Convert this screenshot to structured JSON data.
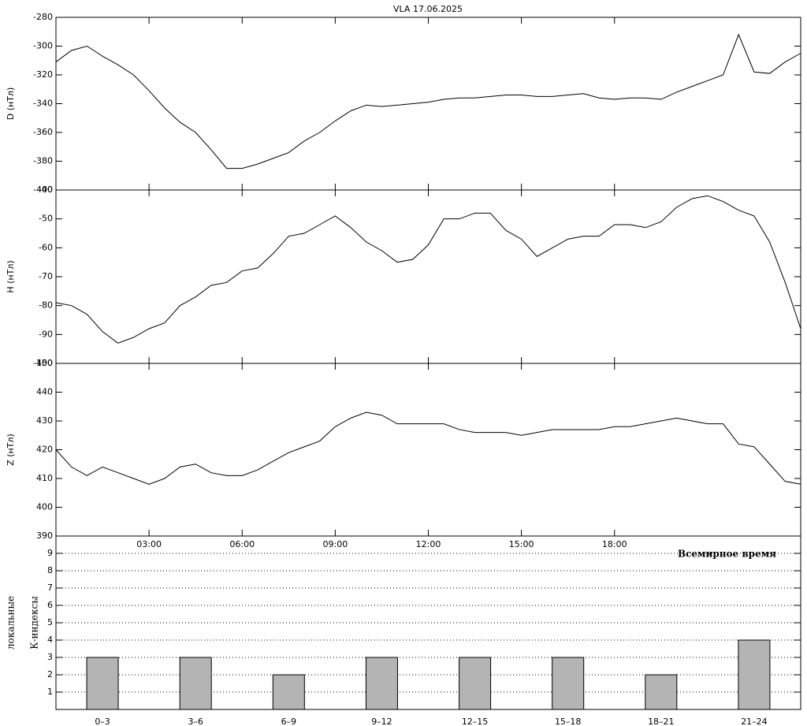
{
  "chart_data": [
    {
      "type": "line",
      "title": "VLA   17.06.2025",
      "ylabel": "D (нТл)",
      "x": [
        0,
        0.5,
        1,
        1.5,
        2,
        2.5,
        3,
        3.5,
        4,
        4.5,
        5,
        5.5,
        6,
        6.5,
        7,
        7.5,
        8,
        8.5,
        9,
        9.5,
        10,
        10.5,
        11,
        11.5,
        12,
        12.5,
        13,
        13.5,
        14,
        14.5,
        15,
        15.5,
        16,
        16.5,
        17,
        17.5,
        18,
        18.5,
        19,
        19.5,
        20,
        20.5,
        21,
        21.5,
        22,
        22.5,
        23,
        23.5,
        24
      ],
      "series": [
        {
          "name": "D",
          "color": "#000000",
          "values": [
            -311,
            -303,
            -300,
            -307,
            -313,
            -320,
            -331,
            -343,
            -353,
            -360,
            -372,
            -385,
            -385,
            -382,
            -378,
            -374,
            -366,
            -360,
            -352,
            -345,
            -341,
            -342,
            -341,
            -340,
            -339,
            -337,
            -336,
            -336,
            -335,
            -334,
            -334,
            -335,
            -335,
            -334,
            -333,
            -336,
            -337,
            -336,
            -336,
            -337,
            -332,
            -328,
            -324,
            -320,
            -292,
            -318,
            -319,
            -311,
            -305
          ]
        }
      ],
      "xlim": [
        0,
        24
      ],
      "ylim": [
        -400,
        -280
      ],
      "yticks": [
        -400,
        -380,
        -360,
        -340,
        -320,
        -300,
        -280
      ]
    },
    {
      "type": "line",
      "ylabel": "H (нТл)",
      "x": [
        0,
        0.5,
        1,
        1.5,
        2,
        2.5,
        3,
        3.5,
        4,
        4.5,
        5,
        5.5,
        6,
        6.5,
        7,
        7.5,
        8,
        8.5,
        9,
        9.5,
        10,
        10.5,
        11,
        11.5,
        12,
        12.5,
        13,
        13.5,
        14,
        14.5,
        15,
        15.5,
        16,
        16.5,
        17,
        17.5,
        18,
        18.5,
        19,
        19.5,
        20,
        20.5,
        21,
        21.5,
        22,
        22.5,
        23,
        23.5,
        24
      ],
      "series": [
        {
          "name": "H",
          "color": "#000000",
          "values": [
            -79,
            -80,
            -83,
            -89,
            -93,
            -91,
            -88,
            -86,
            -80,
            -77,
            -73,
            -72,
            -68,
            -67,
            -62,
            -56,
            -55,
            -52,
            -49,
            -53,
            -58,
            -61,
            -65,
            -64,
            -59,
            -50,
            -50,
            -48,
            -48,
            -54,
            -57,
            -63,
            -60,
            -57,
            -56,
            -56,
            -52,
            -52,
            -53,
            -51,
            -46,
            -43,
            -42,
            -44,
            -47,
            -49,
            -58,
            -72,
            -88
          ]
        }
      ],
      "xlim": [
        0,
        24
      ],
      "ylim": [
        -100,
        -40
      ],
      "yticks": [
        -100,
        -90,
        -80,
        -70,
        -60,
        -50,
        -40
      ]
    },
    {
      "type": "line",
      "ylabel": "Z (нТл)",
      "xlabel": "Всемирное время",
      "x": [
        0,
        0.5,
        1,
        1.5,
        2,
        2.5,
        3,
        3.5,
        4,
        4.5,
        5,
        5.5,
        6,
        6.5,
        7,
        7.5,
        8,
        8.5,
        9,
        9.5,
        10,
        10.5,
        11,
        11.5,
        12,
        12.5,
        13,
        13.5,
        14,
        14.5,
        15,
        15.5,
        16,
        16.5,
        17,
        17.5,
        18,
        18.5,
        19,
        19.5,
        20,
        20.5,
        21,
        21.5,
        22,
        22.5,
        23,
        23.5,
        24
      ],
      "series": [
        {
          "name": "Z",
          "color": "#000000",
          "values": [
            420,
            414,
            411,
            414,
            412,
            410,
            408,
            410,
            414,
            415,
            412,
            411,
            411,
            413,
            416,
            419,
            421,
            423,
            428,
            431,
            433,
            432,
            429,
            429,
            429,
            429,
            427,
            426,
            426,
            426,
            425,
            426,
            427,
            427,
            427,
            427,
            428,
            428,
            429,
            430,
            431,
            430,
            429,
            429,
            422,
            421,
            415,
            409,
            408
          ]
        }
      ],
      "xlim": [
        0,
        24
      ],
      "ylim": [
        390,
        450
      ],
      "yticks": [
        390,
        400,
        410,
        420,
        430,
        440,
        450
      ],
      "xticks": [
        {
          "value": 3,
          "label": "03:00"
        },
        {
          "value": 6,
          "label": "06:00"
        },
        {
          "value": 9,
          "label": "09:00"
        },
        {
          "value": 12,
          "label": "12:00"
        },
        {
          "value": 15,
          "label": "15:00"
        },
        {
          "value": 18,
          "label": "18:00"
        }
      ]
    },
    {
      "type": "bar",
      "ylabel": [
        "локальные",
        "К-индексы"
      ],
      "categories": [
        "0–3",
        "3–6",
        "6–9",
        "9–12",
        "12–15",
        "15–18",
        "18–21",
        "21–24"
      ],
      "values": [
        3,
        3,
        2,
        3,
        3,
        3,
        2,
        4
      ],
      "color": "#b4b4b4",
      "ylim": [
        0,
        10
      ],
      "yticks": [
        1,
        2,
        3,
        4,
        5,
        6,
        7,
        8,
        9
      ],
      "grid": true
    }
  ]
}
